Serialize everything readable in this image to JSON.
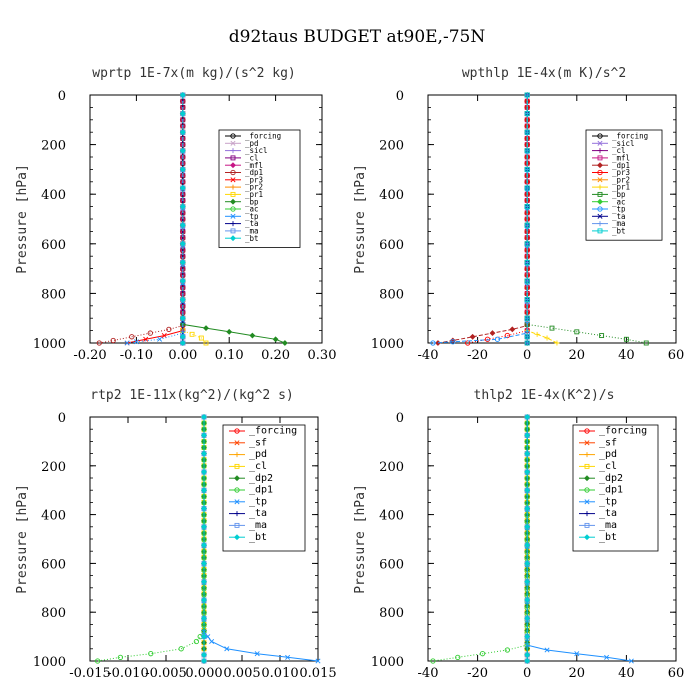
{
  "title": "d92taus  BUDGET at90E,-75N",
  "chart_data": [
    {
      "type": "line",
      "title": "wprtp  1E-7x(m kg)/(s^2 kg)",
      "ylabel": "Pressure [hPa]",
      "xlim": [
        -0.2,
        0.3
      ],
      "ylim": [
        1000,
        0
      ],
      "xticks": [
        "-0.20",
        "-0.10",
        "0.00",
        "0.10",
        "0.20",
        "0.30"
      ],
      "xtick_values": [
        -0.2,
        -0.1,
        0.0,
        0.1,
        0.2,
        0.3
      ],
      "yticks": [
        "0",
        "200",
        "400",
        "600",
        "800",
        "1000"
      ],
      "ytick_values": [
        0,
        200,
        400,
        600,
        800,
        1000
      ],
      "legend_position": "top-right",
      "series": [
        {
          "name": "_forcing",
          "color": "#000000",
          "points": [
            [
              0,
              0
            ],
            [
              0,
              1000
            ]
          ]
        },
        {
          "name": "_pd",
          "color": "#c8a2c8",
          "points": [
            [
              0,
              0
            ],
            [
              0,
              1000
            ]
          ]
        },
        {
          "name": "_sicl",
          "color": "#9370db",
          "points": [
            [
              0,
              0
            ],
            [
              0,
              1000
            ]
          ]
        },
        {
          "name": "_cl",
          "color": "#800080",
          "points": [
            [
              0,
              0
            ],
            [
              0,
              1000
            ]
          ]
        },
        {
          "name": "_mfl",
          "color": "#c71585",
          "points": [
            [
              0,
              0
            ],
            [
              0,
              1000
            ]
          ]
        },
        {
          "name": "_dp1",
          "color": "#b22222",
          "points": [
            [
              0,
              0
            ],
            [
              0,
              930
            ],
            [
              -0.03,
              945
            ],
            [
              -0.07,
              960
            ],
            [
              -0.11,
              975
            ],
            [
              -0.15,
              990
            ],
            [
              -0.18,
              1000
            ]
          ]
        },
        {
          "name": "_pr3",
          "color": "#ff0000",
          "points": [
            [
              0,
              0
            ],
            [
              0,
              950
            ],
            [
              -0.04,
              970
            ],
            [
              -0.08,
              985
            ],
            [
              -0.12,
              1000
            ]
          ]
        },
        {
          "name": "_pr2",
          "color": "#ff8c00",
          "points": [
            [
              0,
              0
            ],
            [
              0,
              1000
            ]
          ]
        },
        {
          "name": "_pr1",
          "color": "#ffd700",
          "points": [
            [
              0,
              0
            ],
            [
              0,
              950
            ],
            [
              0.02,
              965
            ],
            [
              0.04,
              980
            ],
            [
              0.05,
              1000
            ]
          ]
        },
        {
          "name": "_bp",
          "color": "#228b22",
          "points": [
            [
              0,
              0
            ],
            [
              0,
              925
            ],
            [
              0.05,
              940
            ],
            [
              0.1,
              955
            ],
            [
              0.15,
              970
            ],
            [
              0.2,
              985
            ],
            [
              0.22,
              1000
            ]
          ]
        },
        {
          "name": "_ac",
          "color": "#32cd32",
          "points": [
            [
              0,
              0
            ],
            [
              0,
              1000
            ]
          ]
        },
        {
          "name": "_tp",
          "color": "#1e90ff",
          "points": [
            [
              0,
              0
            ],
            [
              0,
              960
            ],
            [
              -0.05,
              985
            ],
            [
              -0.1,
              995
            ],
            [
              -0.12,
              1000
            ]
          ]
        },
        {
          "name": "_ta",
          "color": "#00008b",
          "points": [
            [
              0,
              0
            ],
            [
              0,
              1000
            ]
          ]
        },
        {
          "name": "_ma",
          "color": "#6495ed",
          "points": [
            [
              0,
              0
            ],
            [
              0,
              1000
            ]
          ]
        },
        {
          "name": "_bt",
          "color": "#00ced1",
          "points": [
            [
              0,
              0
            ],
            [
              0,
              1000
            ]
          ]
        }
      ]
    },
    {
      "type": "line",
      "title": "wpthlp  1E-4x(m K)/s^2",
      "ylabel": "Pressure [hPa]",
      "xlim": [
        -40,
        60
      ],
      "ylim": [
        1000,
        0
      ],
      "xticks": [
        "-40",
        "-20",
        "0",
        "20",
        "40",
        "60"
      ],
      "xtick_values": [
        -40,
        -20,
        0,
        20,
        40,
        60
      ],
      "yticks": [
        "0",
        "200",
        "400",
        "600",
        "800",
        "1000"
      ],
      "ytick_values": [
        0,
        200,
        400,
        600,
        800,
        1000
      ],
      "legend_position": "top-right",
      "series": [
        {
          "name": "_forcing",
          "color": "#000000",
          "points": [
            [
              0,
              0
            ],
            [
              0,
              1000
            ]
          ]
        },
        {
          "name": "_sicl",
          "color": "#9370db",
          "points": [
            [
              0,
              0
            ],
            [
              0,
              1000
            ]
          ]
        },
        {
          "name": "_cl",
          "color": "#800080",
          "points": [
            [
              0,
              0
            ],
            [
              0,
              1000
            ]
          ]
        },
        {
          "name": "_mfl",
          "color": "#c71585",
          "points": [
            [
              0,
              0
            ],
            [
              0,
              1000
            ]
          ]
        },
        {
          "name": "_dp1",
          "color": "#b22222",
          "points": [
            [
              0,
              0
            ],
            [
              0,
              930
            ],
            [
              -6,
              945
            ],
            [
              -14,
              960
            ],
            [
              -22,
              975
            ],
            [
              -30,
              990
            ],
            [
              -36,
              1000
            ]
          ]
        },
        {
          "name": "_pr3",
          "color": "#ff0000",
          "points": [
            [
              0,
              0
            ],
            [
              0,
              950
            ],
            [
              -8,
              970
            ],
            [
              -16,
              985
            ],
            [
              -24,
              1000
            ]
          ]
        },
        {
          "name": "_pr2",
          "color": "#ff8c00",
          "points": [
            [
              0,
              0
            ],
            [
              0,
              1000
            ]
          ]
        },
        {
          "name": "_pr1",
          "color": "#ffd700",
          "points": [
            [
              0,
              0
            ],
            [
              0,
              950
            ],
            [
              4,
              965
            ],
            [
              8,
              980
            ],
            [
              12,
              1000
            ]
          ]
        },
        {
          "name": "_bp",
          "color": "#228b22",
          "points": [
            [
              0,
              0
            ],
            [
              0,
              925
            ],
            [
              10,
              940
            ],
            [
              20,
              955
            ],
            [
              30,
              970
            ],
            [
              40,
              985
            ],
            [
              48,
              1000
            ]
          ]
        },
        {
          "name": "_ac",
          "color": "#32cd32",
          "points": [
            [
              0,
              0
            ],
            [
              0,
              1000
            ]
          ]
        },
        {
          "name": "_tp",
          "color": "#1e90ff",
          "points": [
            [
              0,
              0
            ],
            [
              0,
              960
            ],
            [
              -12,
              985
            ],
            [
              -30,
              995
            ],
            [
              -38,
              1000
            ]
          ]
        },
        {
          "name": "_ta",
          "color": "#00008b",
          "points": [
            [
              0,
              0
            ],
            [
              0,
              1000
            ]
          ]
        },
        {
          "name": "_ma",
          "color": "#6495ed",
          "points": [
            [
              0,
              0
            ],
            [
              0,
              1000
            ]
          ]
        },
        {
          "name": "_bt",
          "color": "#00ced1",
          "points": [
            [
              0,
              0
            ],
            [
              0,
              1000
            ]
          ]
        }
      ]
    },
    {
      "type": "line",
      "title": "rtp2  1E-11x(kg^2)/(kg^2 s)",
      "ylabel": "Pressure [hPa]",
      "xlim": [
        -0.015,
        0.015
      ],
      "ylim": [
        1000,
        0
      ],
      "xticks": [
        "-0.015",
        "-0.010",
        "-0.005",
        "0.000",
        "0.005",
        "0.010",
        "0.015"
      ],
      "xtick_values": [
        -0.015,
        -0.01,
        -0.005,
        0.0,
        0.005,
        0.01,
        0.015
      ],
      "yticks": [
        "0",
        "200",
        "400",
        "600",
        "800",
        "1000"
      ],
      "ytick_values": [
        0,
        200,
        400,
        600,
        800,
        1000
      ],
      "legend_position": "top-right",
      "series": [
        {
          "name": "_forcing",
          "color": "#ff0000",
          "points": [
            [
              0,
              0
            ],
            [
              0,
              1000
            ]
          ]
        },
        {
          "name": "_sf",
          "color": "#ff4500",
          "points": [
            [
              0,
              0
            ],
            [
              0,
              1000
            ]
          ]
        },
        {
          "name": "_pd",
          "color": "#ffa500",
          "points": [
            [
              0,
              0
            ],
            [
              0,
              1000
            ]
          ]
        },
        {
          "name": "_cl",
          "color": "#ffd700",
          "points": [
            [
              0,
              0
            ],
            [
              0,
              1000
            ]
          ]
        },
        {
          "name": "_dp2",
          "color": "#228b22",
          "points": [
            [
              0,
              0
            ],
            [
              0,
              1000
            ]
          ]
        },
        {
          "name": "_dp1",
          "color": "#32cd32",
          "points": [
            [
              0,
              0
            ],
            [
              0,
              880
            ],
            [
              -0.001,
              920
            ],
            [
              -0.003,
              950
            ],
            [
              -0.007,
              970
            ],
            [
              -0.011,
              985
            ],
            [
              -0.014,
              1000
            ]
          ]
        },
        {
          "name": "_tp",
          "color": "#1e90ff",
          "points": [
            [
              0,
              0
            ],
            [
              0,
              880
            ],
            [
              0.001,
              920
            ],
            [
              0.003,
              950
            ],
            [
              0.007,
              970
            ],
            [
              0.011,
              985
            ],
            [
              0.015,
              1000
            ]
          ]
        },
        {
          "name": "_ta",
          "color": "#00008b",
          "points": [
            [
              0,
              0
            ],
            [
              0,
              1000
            ]
          ]
        },
        {
          "name": "_ma",
          "color": "#6495ed",
          "points": [
            [
              0,
              0
            ],
            [
              0,
              1000
            ]
          ]
        },
        {
          "name": "_bt",
          "color": "#00ced1",
          "points": [
            [
              0,
              0
            ],
            [
              0,
              1000
            ]
          ]
        }
      ]
    },
    {
      "type": "line",
      "title": "thlp2  1E-4x(K^2)/s",
      "ylabel": "Pressure [hPa]",
      "xlim": [
        -40,
        60
      ],
      "ylim": [
        1000,
        0
      ],
      "xticks": [
        "-40",
        "-20",
        "0",
        "20",
        "40",
        "60"
      ],
      "xtick_values": [
        -40,
        -20,
        0,
        20,
        40,
        60
      ],
      "yticks": [
        "0",
        "200",
        "400",
        "600",
        "800",
        "1000"
      ],
      "ytick_values": [
        0,
        200,
        400,
        600,
        800,
        1000
      ],
      "legend_position": "top-right",
      "series": [
        {
          "name": "_forcing",
          "color": "#ff0000",
          "points": [
            [
              0,
              0
            ],
            [
              0,
              1000
            ]
          ]
        },
        {
          "name": "_sf",
          "color": "#ff4500",
          "points": [
            [
              0,
              0
            ],
            [
              0,
              1000
            ]
          ]
        },
        {
          "name": "_pd",
          "color": "#ffa500",
          "points": [
            [
              0,
              0
            ],
            [
              0,
              1000
            ]
          ]
        },
        {
          "name": "_cl",
          "color": "#ffd700",
          "points": [
            [
              0,
              0
            ],
            [
              0,
              1000
            ]
          ]
        },
        {
          "name": "_dp2",
          "color": "#228b22",
          "points": [
            [
              0,
              0
            ],
            [
              0,
              1000
            ]
          ]
        },
        {
          "name": "_dp1",
          "color": "#32cd32",
          "points": [
            [
              0,
              0
            ],
            [
              0,
              935
            ],
            [
              -8,
              955
            ],
            [
              -18,
              970
            ],
            [
              -28,
              985
            ],
            [
              -38,
              1000
            ]
          ]
        },
        {
          "name": "_tp",
          "color": "#1e90ff",
          "points": [
            [
              0,
              0
            ],
            [
              0,
              935
            ],
            [
              8,
              955
            ],
            [
              20,
              970
            ],
            [
              32,
              985
            ],
            [
              42,
              1000
            ]
          ]
        },
        {
          "name": "_ta",
          "color": "#00008b",
          "points": [
            [
              0,
              0
            ],
            [
              0,
              1000
            ]
          ]
        },
        {
          "name": "_ma",
          "color": "#6495ed",
          "points": [
            [
              0,
              0
            ],
            [
              0,
              1000
            ]
          ]
        },
        {
          "name": "_bt",
          "color": "#00ced1",
          "points": [
            [
              0,
              0
            ],
            [
              0,
              1000
            ]
          ]
        }
      ]
    }
  ]
}
